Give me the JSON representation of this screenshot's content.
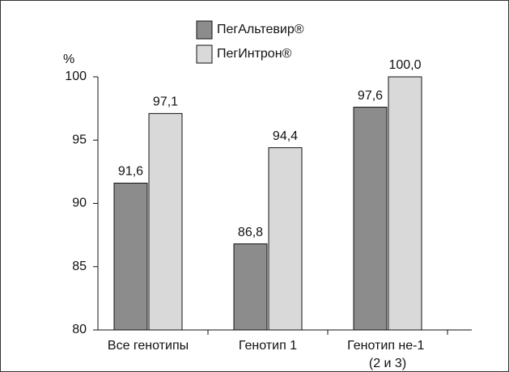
{
  "chart_data": {
    "type": "bar",
    "y_label": "%",
    "categories": [
      "Все генотипы",
      "Генотип 1",
      "Генотип не-1 (2 и 3)"
    ],
    "series": [
      {
        "name": "ПегАльтевир®",
        "color": "#8c8c8c",
        "values": [
          91.6,
          86.8,
          97.6
        ],
        "value_labels": [
          "91,6",
          "86,8",
          "97,6"
        ]
      },
      {
        "name": "ПегИнтрон®",
        "color": "#d9d9d9",
        "values": [
          97.1,
          94.4,
          100.0
        ],
        "value_labels": [
          "97,1",
          "94,4",
          "100,0"
        ]
      }
    ],
    "ylim": [
      80,
      100
    ],
    "yticks": [
      80,
      85,
      90,
      95,
      100
    ],
    "legend": "top"
  }
}
